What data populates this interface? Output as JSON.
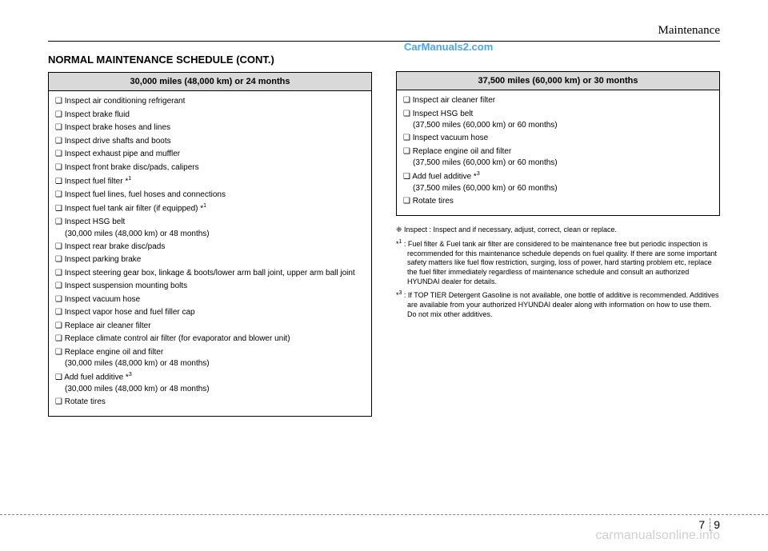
{
  "header": {
    "section": "Maintenance"
  },
  "watermarks": {
    "top": "CarManuals2.com",
    "bottom": "carmanualsonline.info"
  },
  "title": "NORMAL MAINTENANCE SCHEDULE (CONT.)",
  "left_box": {
    "header": "30,000 miles (48,000 km) or 24 months",
    "items": [
      {
        "text": "❑ Inspect air conditioning refrigerant"
      },
      {
        "text": "❑ Inspect brake fluid"
      },
      {
        "text": "❑ Inspect brake hoses and lines"
      },
      {
        "text": "❑ Inspect drive shafts and boots"
      },
      {
        "text": "❑ Inspect exhaust pipe and muffler"
      },
      {
        "text": "❑ Inspect front brake disc/pads, calipers"
      },
      {
        "text": "❑ Inspect fuel filter *",
        "sup": "1"
      },
      {
        "text": "❑ Inspect fuel lines, fuel hoses and connections"
      },
      {
        "text": "❑ Inspect fuel tank air filter (if equipped) *",
        "sup": "1"
      },
      {
        "text": "❑ Inspect HSG belt",
        "sub": "(30,000 miles (48,000 km) or 48 months)"
      },
      {
        "text": "❑ Inspect rear brake disc/pads"
      },
      {
        "text": "❑ Inspect parking brake"
      },
      {
        "text": "❑ Inspect steering gear box, linkage & boots/lower arm ball joint, upper arm ball joint"
      },
      {
        "text": "❑ Inspect suspension mounting bolts"
      },
      {
        "text": "❑ Inspect vacuum hose"
      },
      {
        "text": "❑ Inspect vapor hose and fuel filler cap"
      },
      {
        "text": "❑ Replace air cleaner filter"
      },
      {
        "text": "❑ Replace climate control air filter (for evaporator and blower unit)"
      },
      {
        "text": "❑ Replace engine oil and filter",
        "sub": "(30,000 miles (48,000 km) or 48 months)"
      },
      {
        "text": "❑ Add fuel additive *",
        "sup": "3",
        "sub": "(30,000 miles (48,000 km) or 48 months)"
      },
      {
        "text": "❑ Rotate tires"
      }
    ]
  },
  "right_box": {
    "header": "37,500 miles (60,000 km) or 30 months",
    "items": [
      {
        "text": "❑ Inspect air cleaner filter"
      },
      {
        "text": "❑ Inspect HSG belt",
        "sub": "(37,500 miles (60,000 km) or 60 months)"
      },
      {
        "text": "❑ Inspect vacuum hose"
      },
      {
        "text": "❑ Replace engine oil and filter",
        "sub": "(37,500 miles (60,000 km) or 60 months)"
      },
      {
        "text": "❑ Add fuel additive *",
        "sup": "3",
        "sub": "(37,500 miles (60,000 km) or 60 months)"
      },
      {
        "text": "❑ Rotate tires"
      }
    ]
  },
  "notes": [
    {
      "pre": "❈ ",
      "text": "Inspect : Inspect and if necessary, adjust, correct, clean or replace."
    },
    {
      "pre": "*",
      "sup": "1",
      "post": " : ",
      "text": "Fuel filter & Fuel tank air filter are considered to be maintenance free but periodic inspection is recommended for this maintenance schedule depends on fuel quality. If there are some important safety matters  like fuel flow restriction, surging, loss of power, hard starting problem etc, replace the fuel filter immediately regardless of maintenance schedule and consult an authorized HYUNDAI dealer for details."
    },
    {
      "pre": "*",
      "sup": "3",
      "post": " : ",
      "text": "If TOP TIER Detergent Gasoline is not available, one bottle of additive is recommended. Additives are available from your authorized HYUNDAI dealer along with information on how to use them. Do not mix other additives."
    }
  ],
  "page": {
    "chapter": "7",
    "num": "9"
  }
}
